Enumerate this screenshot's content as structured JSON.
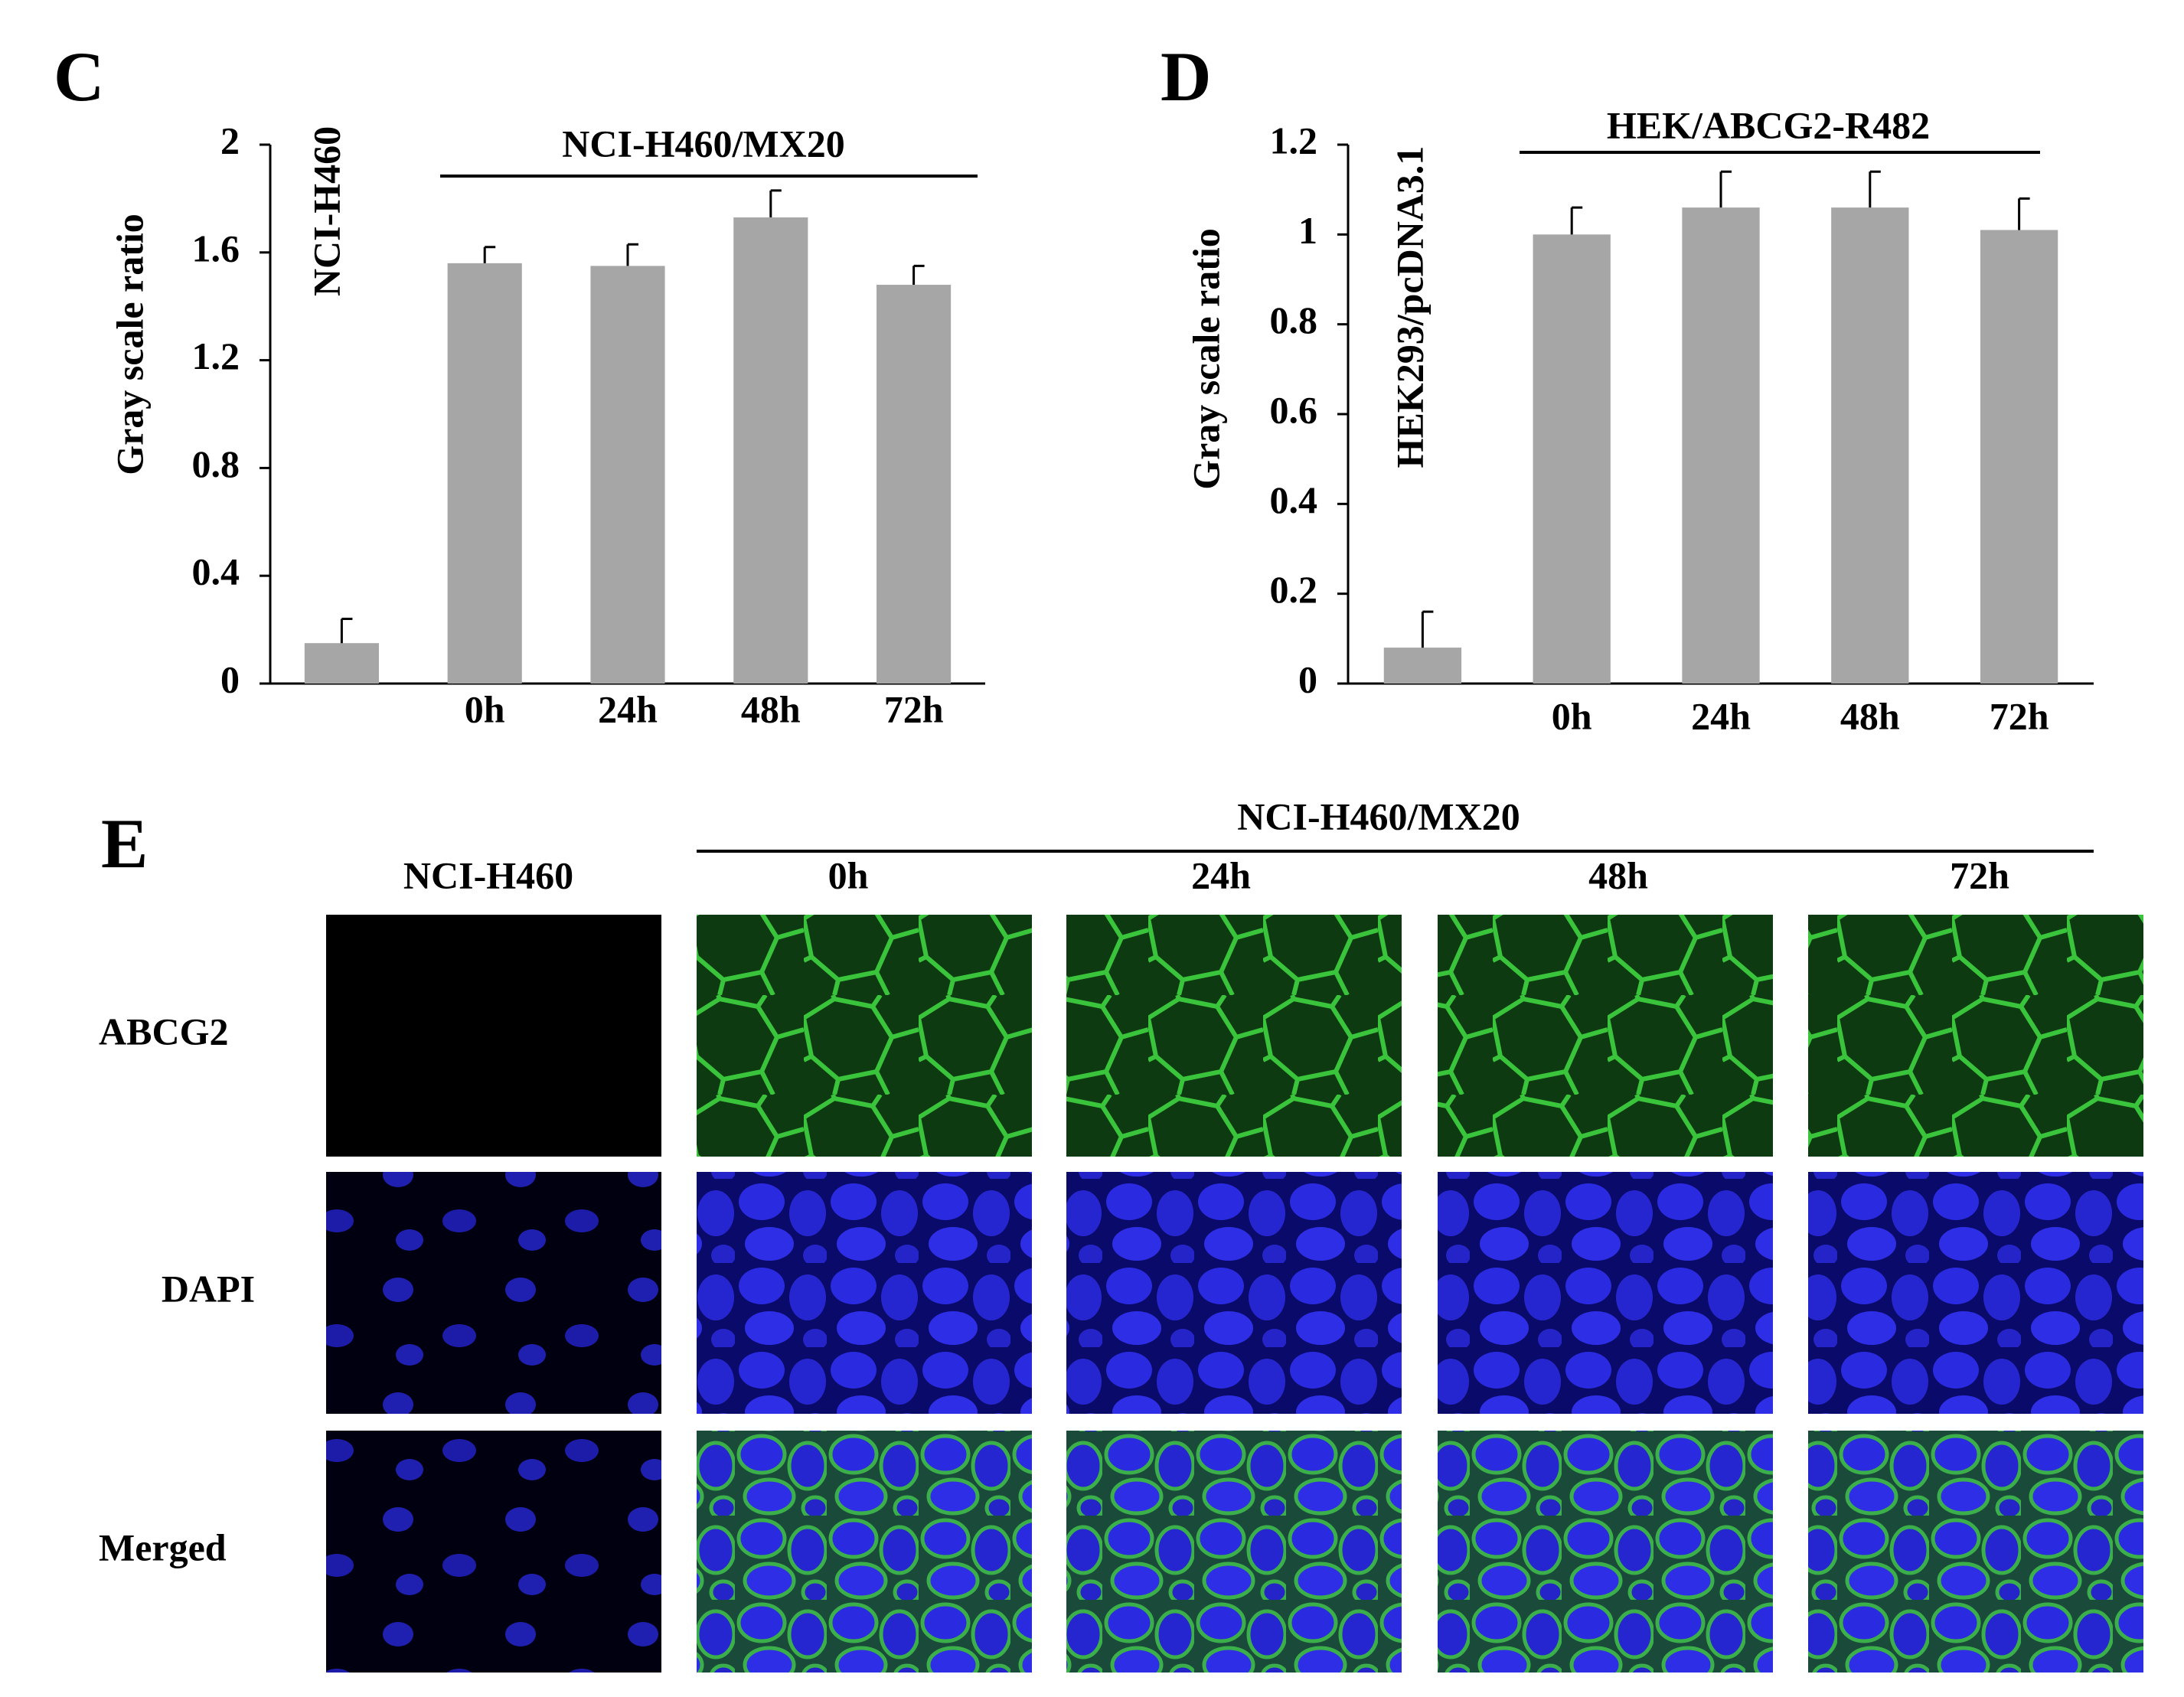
{
  "chart_data": [
    {
      "type": "bar",
      "panel": "C",
      "ylabel": "Gray scale ratio",
      "categories": [
        null,
        "0h",
        "24h",
        "48h",
        "72h"
      ],
      "values": [
        0.15,
        1.56,
        1.55,
        1.73,
        1.48
      ],
      "errors": [
        0.09,
        0.06,
        0.08,
        0.1,
        0.07
      ],
      "color": "#a6a6a6",
      "ylim": [
        0,
        2
      ],
      "yticks": [
        0,
        0.4,
        0.8,
        1.2,
        1.6,
        2
      ],
      "control_label": "NCI-H460",
      "group_label": "NCI-H460/MX20"
    },
    {
      "type": "bar",
      "panel": "D",
      "ylabel": "Gray scale ratio",
      "categories": [
        null,
        "0h",
        "24h",
        "48h",
        "72h"
      ],
      "values": [
        0.08,
        1.0,
        1.06,
        1.06,
        1.01
      ],
      "errors": [
        0.08,
        0.06,
        0.08,
        0.08,
        0.07
      ],
      "color": "#a6a6a6",
      "ylim": [
        0,
        1.2
      ],
      "yticks": [
        0,
        0.2,
        0.4,
        0.6,
        0.8,
        1,
        1.2
      ],
      "control_label": "HEK293/pcDNA3.1",
      "group_label": "HEK/ABCG2-R482"
    }
  ],
  "panel_e": {
    "panel": "E",
    "control": "NCI-H460",
    "group": "NCI-H460/MX20",
    "times": [
      "0h",
      "24h",
      "48h",
      "72h"
    ],
    "rows": [
      "ABCG2",
      "DAPI",
      "Merged"
    ]
  }
}
